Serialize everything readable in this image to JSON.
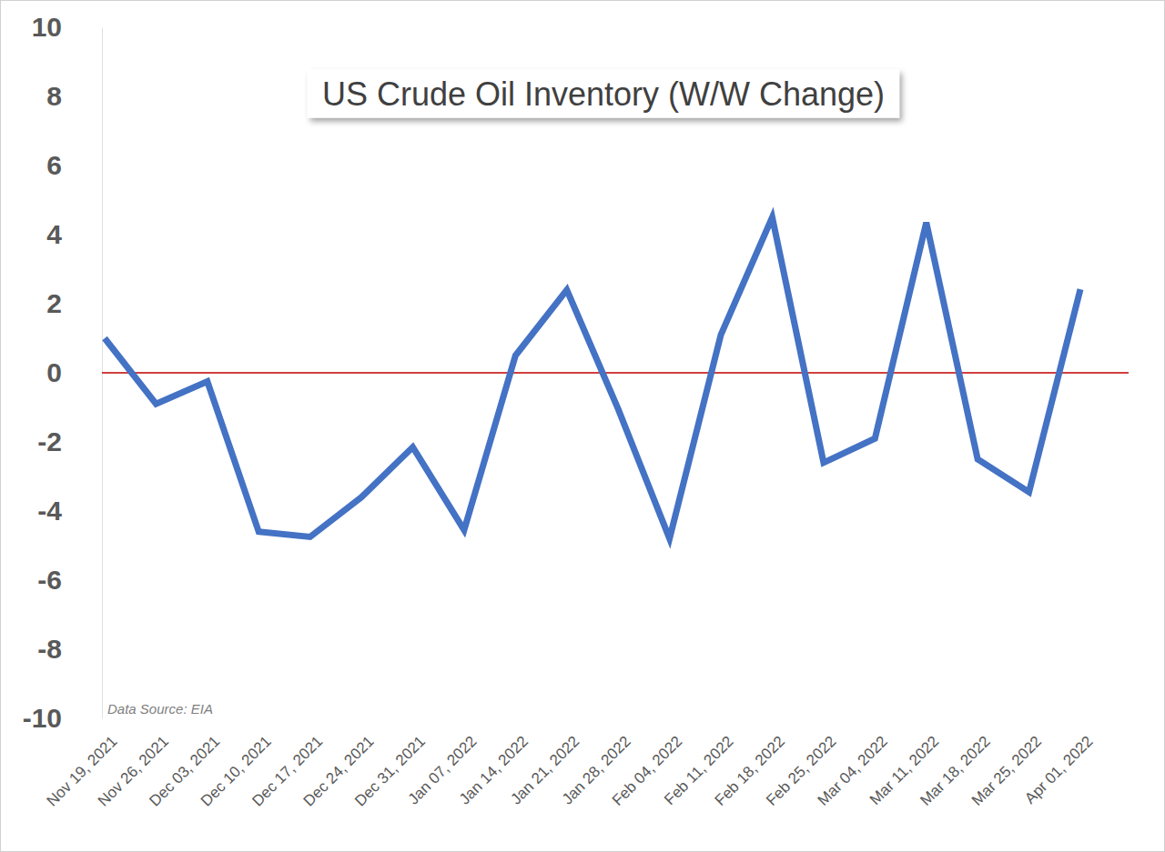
{
  "chart_data": {
    "type": "line",
    "title": "US Crude Oil Inventory (W/W Change)",
    "source": "Data Source: EIA",
    "x": [
      "Nov 19, 2021",
      "Nov 26, 2021",
      "Dec 03, 2021",
      "Dec 10, 2021",
      "Dec 17, 2021",
      "Dec 24, 2021",
      "Dec 31, 2021",
      "Jan 07, 2022",
      "Jan 14, 2022",
      "Jan 21, 2022",
      "Jan 28, 2022",
      "Feb 04, 2022",
      "Feb 11, 2022",
      "Feb 18, 2022",
      "Feb 25, 2022",
      "Mar 04, 2022",
      "Mar 11, 2022",
      "Mar 18, 2022",
      "Mar 25, 2022",
      "Apr 01, 2022"
    ],
    "values": [
      1.0,
      -0.9,
      -0.25,
      -4.6,
      -4.75,
      -3.6,
      -2.15,
      -4.55,
      0.5,
      2.4,
      -1.05,
      -4.8,
      1.1,
      4.5,
      -2.6,
      -1.9,
      4.35,
      -2.5,
      -3.45,
      2.42
    ],
    "color": "#4472c4",
    "ylim": [
      -10,
      10
    ],
    "yticks": [
      -10,
      -8,
      -6,
      -4,
      -2,
      0,
      2,
      4,
      6,
      8,
      10
    ],
    "grid": false
  }
}
